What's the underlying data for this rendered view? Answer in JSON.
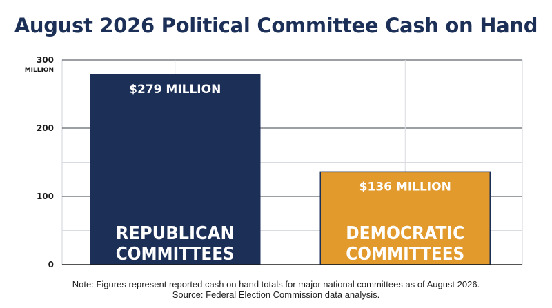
{
  "chart_data": {
    "type": "bar",
    "title": "August 2026 Political Committee Cash on Hand",
    "categories": [
      "REPUBLICAN COMMITTEES",
      "DEMOCRATIC COMMITTEES"
    ],
    "category_lines": [
      [
        "REPUBLICAN",
        "COMMITTEES"
      ],
      [
        "DEMOCRATIC",
        "COMMITTEES"
      ]
    ],
    "values": [
      279,
      136
    ],
    "data_labels": [
      "$279 MILLION",
      "$136 MILLION"
    ],
    "bar_colors": [
      "#1b2f57",
      "#e29a2c"
    ],
    "ylim": [
      0,
      300
    ],
    "y_ticks": [
      0,
      100,
      200,
      300
    ],
    "y_unit_label": "MILLION",
    "grid": true,
    "legend": "none"
  },
  "notes": {
    "line1": "Note: Figures represent reported cash on hand totals for major national committees as of August 2026.",
    "line2": "Source: Federal Election Commission data analysis."
  }
}
